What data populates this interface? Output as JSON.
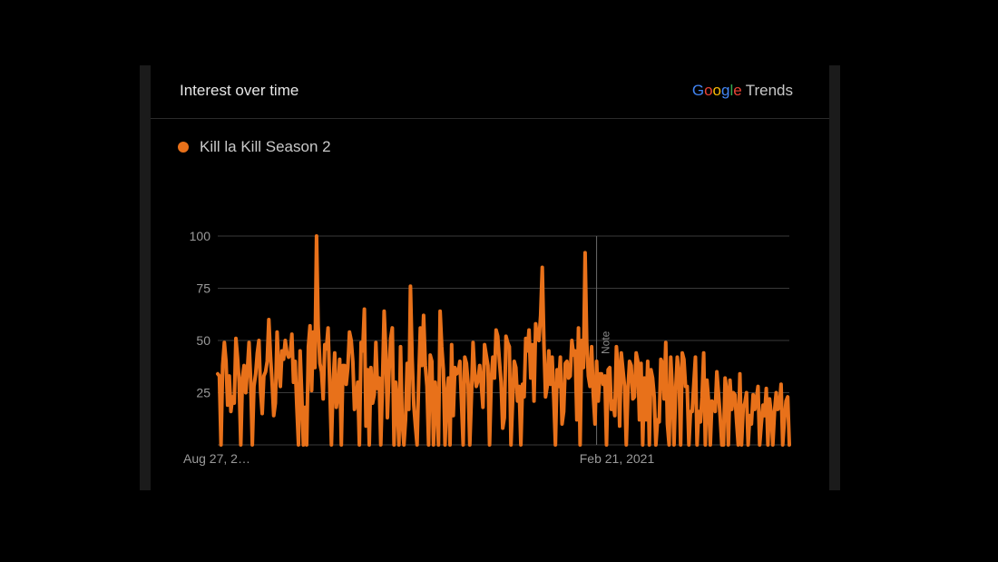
{
  "card": {
    "title": "Interest over time",
    "brand": {
      "google_letters": [
        "G",
        "o",
        "o",
        "g",
        "l",
        "e"
      ],
      "google_colors": [
        "#4285F4",
        "#EA4335",
        "#FBBC05",
        "#4285F4",
        "#34A853",
        "#EA4335"
      ],
      "trends": "Trends"
    }
  },
  "colors": {
    "series": "#e8711a",
    "grid": "#3a3a3a",
    "axis_text": "#9a9a9a",
    "background": "#000000"
  },
  "chart_data": {
    "type": "line",
    "series": [
      {
        "name": "Kill la Kill Season 2",
        "color": "#e8711a",
        "values": [
          34,
          33,
          0,
          38,
          49,
          40,
          19,
          33,
          16,
          23,
          20,
          51,
          42,
          30,
          0,
          32,
          38,
          25,
          36,
          49,
          31,
          0,
          28,
          34,
          44,
          50,
          26,
          15,
          33,
          35,
          40,
          60,
          43,
          30,
          14,
          20,
          54,
          37,
          28,
          45,
          41,
          50,
          44,
          42,
          43,
          53,
          30,
          40,
          19,
          0,
          45,
          24,
          0,
          18,
          0,
          47,
          57,
          26,
          54,
          37,
          100,
          57,
          39,
          35,
          22,
          48,
          46,
          56,
          28,
          0,
          29,
          44,
          18,
          24,
          41,
          0,
          38,
          38,
          29,
          37,
          54,
          50,
          40,
          17,
          21,
          30,
          0,
          49,
          45,
          65,
          9,
          36,
          0,
          37,
          20,
          24,
          49,
          27,
          32,
          0,
          30,
          64,
          45,
          13,
          35,
          51,
          56,
          0,
          30,
          20,
          0,
          47,
          11,
          0,
          12,
          39,
          17,
          76,
          42,
          19,
          9,
          0,
          31,
          56,
          38,
          62,
          38,
          28,
          0,
          43,
          40,
          0,
          30,
          19,
          0,
          64,
          47,
          36,
          0,
          24,
          32,
          0,
          48,
          14,
          37,
          34,
          35,
          40,
          20,
          0,
          42,
          39,
          29,
          0,
          23,
          49,
          34,
          28,
          31,
          38,
          29,
          18,
          48,
          43,
          38,
          0,
          30,
          42,
          32,
          55,
          52,
          40,
          30,
          8,
          13,
          52,
          49,
          47,
          0,
          21,
          40,
          37,
          21,
          28,
          0,
          29,
          23,
          51,
          45,
          55,
          32,
          48,
          21,
          58,
          51,
          50,
          62,
          85,
          49,
          23,
          28,
          45,
          29,
          42,
          22,
          0,
          36,
          28,
          42,
          10,
          16,
          39,
          40,
          32,
          33,
          50,
          43,
          45,
          12,
          56,
          0,
          50,
          37,
          92,
          49,
          33,
          28,
          47,
          24,
          10,
          40,
          21,
          34,
          34,
          29,
          33,
          0,
          36,
          37,
          17,
          21,
          14,
          47,
          37,
          9,
          44,
          36,
          28,
          0,
          26,
          40,
          38,
          22,
          23,
          44,
          40,
          12,
          39,
          0,
          32,
          12,
          40,
          0,
          36,
          32,
          23,
          0,
          12,
          11,
          41,
          39,
          22,
          49,
          10,
          0,
          42,
          26,
          0,
          26,
          42,
          34,
          0,
          44,
          41,
          28,
          28,
          0,
          16,
          16,
          29,
          42,
          0,
          16,
          11,
          23,
          44,
          0,
          31,
          21,
          0,
          21,
          20,
          16,
          35,
          25,
          14,
          0,
          0,
          32,
          26,
          0,
          31,
          17,
          25,
          24,
          11,
          0,
          34,
          0,
          18,
          20,
          25,
          0,
          14,
          10,
          24,
          17,
          22,
          28,
          0,
          10,
          19,
          14,
          27,
          0,
          22,
          15,
          0,
          16,
          25,
          17,
          18,
          29,
          0,
          12,
          21,
          23,
          0
        ]
      }
    ],
    "ylim": [
      0,
      100
    ],
    "y_ticks": [
      25,
      50,
      75,
      100
    ],
    "x_tick_labels": [
      "Aug 27, 2…",
      "Feb 21, 2021"
    ],
    "annotation": "Note",
    "grid": true,
    "legend_position": "top-left"
  }
}
